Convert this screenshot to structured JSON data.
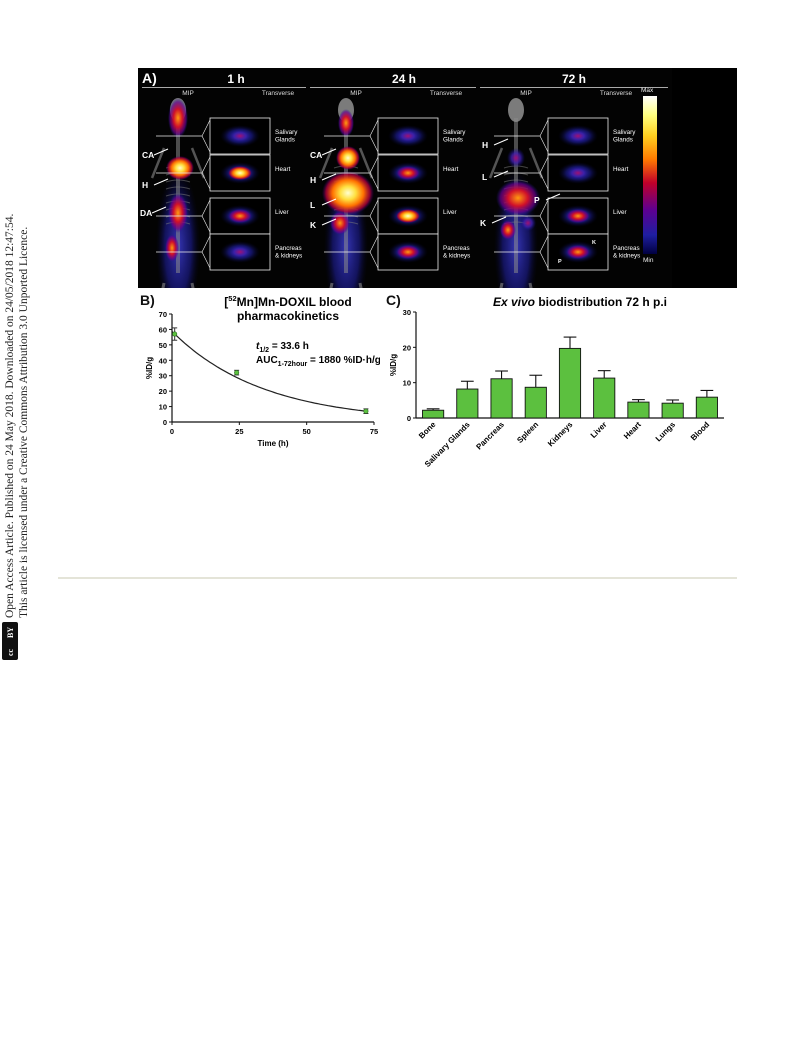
{
  "side_note": {
    "line1": "Open Access Article. Published on 24 May 2018. Downloaded on 24/05/2018 12:47:54.",
    "line2": "This article is licensed under a Creative Commons Attribution 3.0 Unported Licence.",
    "badge_cc": "cc",
    "badge_by": "BY"
  },
  "panel_a": {
    "label": "A)",
    "colorbar_max": "Max",
    "colorbar_min": "Min",
    "subpanels": [
      {
        "time": "1 h",
        "mip": "MIP",
        "transverse": "Transverse",
        "organs": [
          "Salivary\nGlands",
          "Heart",
          "Liver",
          "Pancreas\n& kidneys"
        ],
        "markers": [
          "CA",
          "H",
          "DA"
        ]
      },
      {
        "time": "24 h",
        "mip": "MIP",
        "transverse": "Transverse",
        "organs": [
          "Salivary\nGlands",
          "Heart",
          "Liver",
          "Pancreas\n& kidneys"
        ],
        "markers": [
          "CA",
          "H",
          "L",
          "K"
        ]
      },
      {
        "time": "72 h",
        "mip": "MIP",
        "transverse": "Transverse",
        "organs": [
          "Salivary\nGlands",
          "Heart",
          "Liver",
          "Pancreas\n& kidneys"
        ],
        "markers": [
          "H",
          "L",
          "P",
          "K"
        ],
        "inset_markers": [
          "K",
          "P"
        ]
      }
    ]
  },
  "chart_data": [
    {
      "type": "line",
      "panel_label": "B)",
      "title_line1_pre": "[",
      "title_sup": "52",
      "title_line1_post": "Mn]Mn-DOXIL blood",
      "title_line2": "pharmacokinetics",
      "annotation_t_half_t": "t",
      "annotation_t_half_sub": "1/2",
      "annotation_t_half_val": " = 33.6 h",
      "annotation_auc_pre": "AUC",
      "annotation_auc_sub": "1-72hour",
      "annotation_auc_val": " = 1880 %ID·h/g",
      "xlabel": "Time (h)",
      "ylabel": "%ID/g",
      "xlim": [
        0,
        75
      ],
      "ylim": [
        0,
        70
      ],
      "xticks": [
        0,
        25,
        50,
        75
      ],
      "yticks": [
        0,
        10,
        20,
        30,
        40,
        50,
        60,
        70
      ],
      "points": [
        {
          "x": 1,
          "y": 57,
          "err": 4
        },
        {
          "x": 24,
          "y": 32,
          "err": 1.5
        },
        {
          "x": 72,
          "y": 7,
          "err": 1.5
        }
      ]
    },
    {
      "type": "bar",
      "panel_label": "C)",
      "title_italic": "Ex vivo",
      "title_rest": " biodistribution 72 h p.i",
      "ylabel": "%ID/g",
      "ylim": [
        0,
        30
      ],
      "yticks": [
        0,
        10,
        20,
        30
      ],
      "categories": [
        "Bone",
        "Salivary Glands",
        "Pancreas",
        "Spleen",
        "Kidneys",
        "Liver",
        "Heart",
        "Lungs",
        "Blood"
      ],
      "values": [
        2.2,
        8.2,
        11.1,
        8.7,
        19.7,
        11.3,
        4.5,
        4.2,
        5.9
      ],
      "errors": [
        0.4,
        2.2,
        2.2,
        3.4,
        3.2,
        2.1,
        0.7,
        0.9,
        1.9
      ],
      "bar_color": "#5cc03f"
    }
  ]
}
